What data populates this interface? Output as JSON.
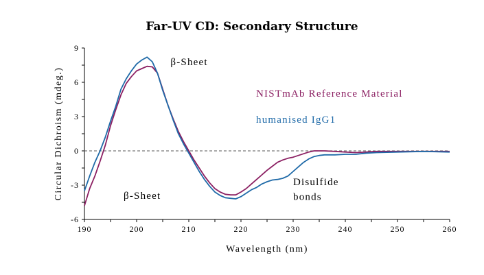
{
  "chart_data": {
    "type": "line",
    "title": "Far-UV CD: Secondary Structure",
    "xlabel": "Wavelength (nm)",
    "ylabel": "Circular Dichroism (mdeg.)",
    "xlim": [
      190,
      260
    ],
    "ylim": [
      -6,
      9
    ],
    "xticks": [
      190,
      200,
      210,
      220,
      230,
      240,
      250,
      260
    ],
    "yticks": [
      -6,
      -3,
      0,
      3,
      6,
      9
    ],
    "grid": false,
    "zero_line": "dashed",
    "legend": "right (inline text labels)",
    "series": [
      {
        "name": "NISTmAb Reference Material",
        "color": "#8b1f62",
        "x": [
          190,
          191,
          192,
          193,
          194,
          195,
          196,
          197,
          198,
          199,
          200,
          201,
          202,
          203,
          204,
          205,
          206,
          207,
          208,
          209,
          210,
          211,
          212,
          213,
          214,
          215,
          216,
          217,
          218,
          219,
          220,
          221,
          222,
          223,
          224,
          225,
          226,
          227,
          228,
          229,
          230,
          231,
          232,
          233,
          234,
          236,
          238,
          240,
          242,
          244,
          246,
          250,
          255,
          260
        ],
        "y": [
          -4.8,
          -3.3,
          -2.2,
          -0.9,
          0.5,
          2.2,
          3.6,
          4.9,
          5.9,
          6.5,
          7.0,
          7.2,
          7.4,
          7.35,
          6.8,
          5.4,
          4.0,
          2.8,
          1.7,
          0.8,
          0.0,
          -0.8,
          -1.5,
          -2.2,
          -2.8,
          -3.3,
          -3.6,
          -3.8,
          -3.85,
          -3.85,
          -3.6,
          -3.3,
          -2.9,
          -2.5,
          -2.1,
          -1.7,
          -1.35,
          -1.0,
          -0.8,
          -0.65,
          -0.55,
          -0.4,
          -0.25,
          -0.1,
          0.0,
          0.0,
          -0.05,
          -0.1,
          -0.15,
          -0.1,
          -0.05,
          -0.05,
          -0.05,
          -0.05
        ]
      },
      {
        "name": "humanised IgG1",
        "color": "#1f6aa8",
        "x": [
          190,
          191,
          192,
          193,
          194,
          195,
          196,
          197,
          198,
          199,
          200,
          201,
          202,
          203,
          204,
          205,
          206,
          207,
          208,
          209,
          210,
          211,
          212,
          213,
          214,
          215,
          216,
          217,
          218,
          219,
          220,
          221,
          222,
          223,
          224,
          225,
          226,
          227,
          228,
          229,
          230,
          231,
          232,
          233,
          234,
          235,
          236,
          238,
          240,
          242,
          244,
          246,
          250,
          255,
          260
        ],
        "y": [
          -3.5,
          -2.2,
          -1.0,
          0.0,
          1.2,
          2.6,
          3.9,
          5.4,
          6.3,
          7.0,
          7.6,
          7.95,
          8.2,
          7.8,
          6.8,
          5.3,
          4.0,
          2.7,
          1.5,
          0.6,
          -0.2,
          -1.0,
          -1.8,
          -2.5,
          -3.1,
          -3.6,
          -3.9,
          -4.1,
          -4.15,
          -4.2,
          -4.0,
          -3.7,
          -3.4,
          -3.2,
          -2.9,
          -2.7,
          -2.55,
          -2.5,
          -2.4,
          -2.2,
          -1.8,
          -1.4,
          -1.0,
          -0.7,
          -0.5,
          -0.4,
          -0.35,
          -0.35,
          -0.3,
          -0.3,
          -0.2,
          -0.15,
          -0.1,
          -0.05,
          -0.1
        ]
      }
    ],
    "annotations": [
      {
        "text": "β-Sheet",
        "x": 206.5,
        "y": 7.5
      },
      {
        "text": "β-Sheet",
        "x": 197.5,
        "y": -4.2
      },
      {
        "text": "Disulfide",
        "x": 230,
        "y": -3.0
      },
      {
        "text": "bonds",
        "x": 230,
        "y": -4.3
      }
    ]
  }
}
